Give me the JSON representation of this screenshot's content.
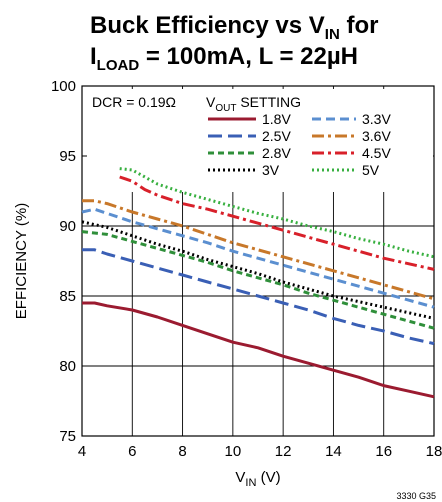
{
  "chart_data": {
    "type": "line",
    "title": {
      "line1_prefix": "Buck Efficiency vs V",
      "line1_sub": "IN",
      "line1_suffix": " for",
      "line2_prefix": "I",
      "line2_sub": "LOAD",
      "line2_suffix": " = 100mA, L = 22µH"
    },
    "xlabel": {
      "prefix": "V",
      "sub": "IN",
      "suffix": " (V)"
    },
    "ylabel": "EFFICIENCY (%)",
    "xlim": [
      4,
      18
    ],
    "ylim": [
      75,
      100
    ],
    "xticks": [
      4,
      6,
      8,
      10,
      12,
      14,
      16,
      18
    ],
    "yticks": [
      75,
      80,
      85,
      90,
      95,
      100
    ],
    "grid": true,
    "annotation": "DCR = 0.19Ω",
    "legend_title": {
      "prefix": "V",
      "sub": "OUT",
      "suffix": " SETTING"
    },
    "legend_position": "top-right",
    "figure_id": "3330 G35",
    "series": [
      {
        "name": "1.8V",
        "color": "#9b1b30",
        "dash": "solid",
        "points": [
          [
            4.0,
            84.5
          ],
          [
            4.5,
            84.5
          ],
          [
            5,
            84.3
          ],
          [
            6,
            84.0
          ],
          [
            7,
            83.5
          ],
          [
            8,
            82.9
          ],
          [
            9,
            82.3
          ],
          [
            10,
            81.7
          ],
          [
            11,
            81.3
          ],
          [
            12,
            80.7
          ],
          [
            13,
            80.2
          ],
          [
            14,
            79.7
          ],
          [
            15,
            79.2
          ],
          [
            16,
            78.6
          ],
          [
            17,
            78.2
          ],
          [
            18,
            77.8
          ]
        ]
      },
      {
        "name": "2.5V",
        "color": "#3a5fb5",
        "dash": "long",
        "points": [
          [
            4.0,
            88.3
          ],
          [
            4.5,
            88.3
          ],
          [
            5,
            88.0
          ],
          [
            6,
            87.5
          ],
          [
            7,
            87.0
          ],
          [
            8,
            86.5
          ],
          [
            9,
            86.0
          ],
          [
            10,
            85.5
          ],
          [
            11,
            85.0
          ],
          [
            12,
            84.5
          ],
          [
            13,
            84.0
          ],
          [
            14,
            83.4
          ],
          [
            15,
            82.9
          ],
          [
            16,
            82.5
          ],
          [
            17,
            82.0
          ],
          [
            18,
            81.6
          ]
        ]
      },
      {
        "name": "2.8V",
        "color": "#2f8f3a",
        "dash": "short",
        "points": [
          [
            4.0,
            89.6
          ],
          [
            5,
            89.4
          ],
          [
            6,
            88.9
          ],
          [
            7,
            88.4
          ],
          [
            8,
            87.9
          ],
          [
            9,
            87.4
          ],
          [
            10,
            86.8
          ],
          [
            11,
            86.3
          ],
          [
            12,
            85.8
          ],
          [
            13,
            85.2
          ],
          [
            14,
            84.7
          ],
          [
            15,
            84.2
          ],
          [
            16,
            83.7
          ],
          [
            17,
            83.2
          ],
          [
            18,
            82.7
          ]
        ]
      },
      {
        "name": "3V",
        "color": "#000000",
        "dash": "dot",
        "points": [
          [
            4.0,
            90.3
          ],
          [
            5,
            89.9
          ],
          [
            6,
            89.3
          ],
          [
            7,
            88.7
          ],
          [
            8,
            88.2
          ],
          [
            9,
            87.6
          ],
          [
            10,
            87.1
          ],
          [
            11,
            86.6
          ],
          [
            12,
            86.0
          ],
          [
            13,
            85.5
          ],
          [
            14,
            85.0
          ],
          [
            15,
            84.6
          ],
          [
            16,
            84.2
          ],
          [
            17,
            83.8
          ],
          [
            18,
            83.4
          ]
        ]
      },
      {
        "name": "3.3V",
        "color": "#5b8fd0",
        "dash": "medium",
        "points": [
          [
            4.0,
            91.0
          ],
          [
            4.5,
            91.2
          ],
          [
            5,
            90.9
          ],
          [
            6,
            90.3
          ],
          [
            7,
            89.8
          ],
          [
            8,
            89.3
          ],
          [
            9,
            88.8
          ],
          [
            10,
            88.2
          ],
          [
            11,
            87.7
          ],
          [
            12,
            87.2
          ],
          [
            13,
            86.7
          ],
          [
            14,
            86.2
          ],
          [
            15,
            85.7
          ],
          [
            16,
            85.2
          ],
          [
            17,
            84.7
          ],
          [
            18,
            84.2
          ]
        ]
      },
      {
        "name": "3.6V",
        "color": "#c8782a",
        "dash": "dashdot",
        "points": [
          [
            4.0,
            91.8
          ],
          [
            4.5,
            91.8
          ],
          [
            5,
            91.6
          ],
          [
            6,
            91.0
          ],
          [
            7,
            90.5
          ],
          [
            8,
            90.0
          ],
          [
            9,
            89.4
          ],
          [
            10,
            88.8
          ],
          [
            11,
            88.3
          ],
          [
            12,
            87.8
          ],
          [
            13,
            87.3
          ],
          [
            14,
            86.8
          ],
          [
            15,
            86.3
          ],
          [
            16,
            85.8
          ],
          [
            17,
            85.3
          ],
          [
            18,
            84.8
          ]
        ]
      },
      {
        "name": "4.5V",
        "color": "#d8202a",
        "dash": "dashdot",
        "points": [
          [
            5.5,
            93.5
          ],
          [
            6,
            93.2
          ],
          [
            6.5,
            92.6
          ],
          [
            7,
            92.2
          ],
          [
            8,
            91.6
          ],
          [
            9,
            91.2
          ],
          [
            10,
            90.7
          ],
          [
            11,
            90.2
          ],
          [
            12,
            89.7
          ],
          [
            13,
            89.2
          ],
          [
            14,
            88.7
          ],
          [
            15,
            88.2
          ],
          [
            16,
            87.7
          ],
          [
            17,
            87.3
          ],
          [
            18,
            86.9
          ]
        ]
      },
      {
        "name": "5V",
        "color": "#38b040",
        "dash": "dot",
        "points": [
          [
            5.5,
            94.1
          ],
          [
            6,
            94.0
          ],
          [
            6.5,
            93.5
          ],
          [
            7,
            93.0
          ],
          [
            8,
            92.4
          ],
          [
            9,
            91.9
          ],
          [
            10,
            91.4
          ],
          [
            11,
            90.9
          ],
          [
            12,
            90.5
          ],
          [
            13,
            90.0
          ],
          [
            14,
            89.6
          ],
          [
            15,
            89.1
          ],
          [
            16,
            88.7
          ],
          [
            17,
            88.2
          ],
          [
            18,
            87.8
          ]
        ]
      }
    ]
  }
}
